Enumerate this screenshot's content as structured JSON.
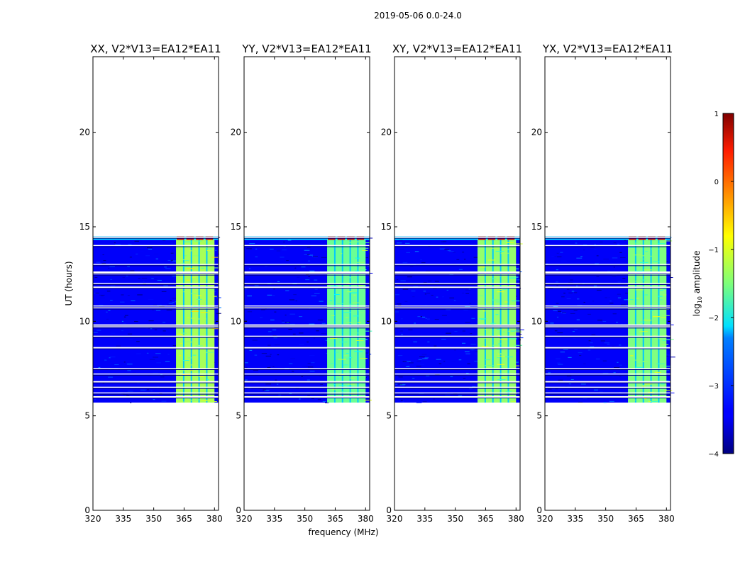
{
  "suptitle": "2019-05-06 0.0-24.0",
  "xlabel": "frequency (MHz)",
  "ylabel": "UT (hours)",
  "colorbar": {
    "label_main": "log",
    "label_sub": "10",
    "label_tail": " amplitude",
    "ticks": [
      {
        "value": 1,
        "label": "1"
      },
      {
        "value": 0,
        "label": "0"
      },
      {
        "value": -1,
        "label": "−1"
      },
      {
        "value": -2,
        "label": "−2"
      },
      {
        "value": -3,
        "label": "−3"
      },
      {
        "value": -4,
        "label": "−4"
      }
    ],
    "range": [
      -4,
      1
    ],
    "colormap": "jet"
  },
  "chart_data": [
    {
      "type": "heatmap",
      "title": "XX, V2*V13=EA12*EA11",
      "xlabel": "frequency (MHz)",
      "ylabel": "UT (hours)",
      "xlim": [
        320,
        382
      ],
      "ylim": [
        0,
        24
      ],
      "xticks": [
        320,
        335,
        350,
        365,
        380
      ],
      "yticks": [
        0,
        5,
        10,
        15,
        20
      ],
      "data_time_range": [
        5.7,
        14.5
      ],
      "band_mhz": [
        361,
        380
      ],
      "band_log_amplitude": -1.3,
      "background_log_amplitude": -3.4,
      "rfi_row_hours": [
        14.45,
        14.0,
        13.0,
        12.6,
        12.5,
        12.0,
        11.8,
        10.8,
        10.7,
        9.8,
        9.7,
        9.2,
        8.6,
        7.5,
        7.2,
        6.8,
        6.5,
        6.2,
        6.0
      ]
    },
    {
      "type": "heatmap",
      "title": "YY, V2*V13=EA12*EA11",
      "xlabel": "frequency (MHz)",
      "ylabel": "",
      "xlim": [
        320,
        382
      ],
      "ylim": [
        0,
        24
      ],
      "xticks": [
        320,
        335,
        350,
        365,
        380
      ],
      "yticks": [
        0,
        5,
        10,
        15,
        20
      ],
      "data_time_range": [
        5.7,
        14.5
      ],
      "band_mhz": [
        361,
        380
      ],
      "band_log_amplitude": -1.6,
      "background_log_amplitude": -3.4,
      "rfi_row_hours": [
        14.45,
        14.0,
        13.0,
        12.6,
        12.5,
        12.0,
        11.8,
        10.8,
        10.7,
        9.8,
        9.7,
        9.2,
        8.6,
        7.5,
        7.2,
        6.8,
        6.5,
        6.2,
        6.0
      ]
    },
    {
      "type": "heatmap",
      "title": "XY, V2*V13=EA12*EA11",
      "xlabel": "frequency (MHz)",
      "ylabel": "",
      "xlim": [
        320,
        382
      ],
      "ylim": [
        0,
        24
      ],
      "xticks": [
        320,
        335,
        350,
        365,
        380
      ],
      "yticks": [
        0,
        5,
        10,
        15,
        20
      ],
      "data_time_range": [
        5.7,
        14.5
      ],
      "band_mhz": [
        361,
        380
      ],
      "band_log_amplitude": -1.4,
      "background_log_amplitude": -3.4,
      "rfi_row_hours": [
        14.45,
        14.0,
        13.0,
        12.6,
        12.5,
        12.0,
        11.8,
        10.8,
        10.7,
        9.8,
        9.7,
        9.2,
        8.6,
        7.5,
        7.2,
        6.8,
        6.5,
        6.2,
        6.0
      ]
    },
    {
      "type": "heatmap",
      "title": "YX, V2*V13=EA12*EA11",
      "xlabel": "frequency (MHz)",
      "ylabel": "",
      "xlim": [
        320,
        382
      ],
      "ylim": [
        0,
        24
      ],
      "xticks": [
        320,
        335,
        350,
        365,
        380
      ],
      "yticks": [
        0,
        5,
        10,
        15,
        20
      ],
      "data_time_range": [
        5.7,
        14.5
      ],
      "band_mhz": [
        361,
        380
      ],
      "band_log_amplitude": -1.5,
      "background_log_amplitude": -3.4,
      "rfi_row_hours": [
        14.45,
        14.0,
        13.0,
        12.6,
        12.5,
        12.0,
        11.8,
        10.8,
        10.7,
        9.8,
        9.7,
        9.2,
        8.6,
        7.5,
        7.2,
        6.8,
        6.5,
        6.2,
        6.0
      ]
    }
  ]
}
